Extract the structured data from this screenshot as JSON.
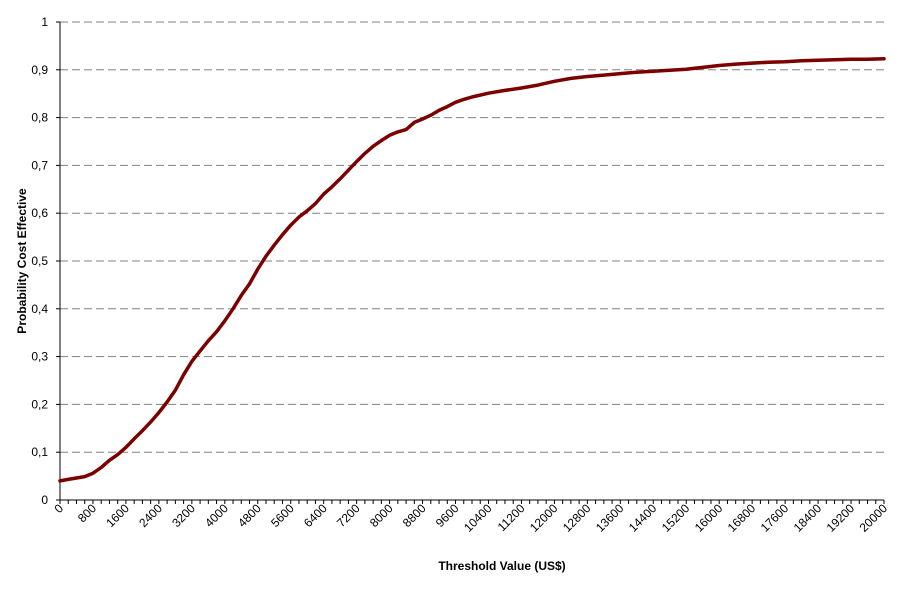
{
  "chart_data": {
    "type": "line",
    "title": "",
    "xlabel": "Threshold Value (US$)",
    "ylabel": "Probability Cost Effective",
    "xlim": [
      0,
      20000
    ],
    "ylim": [
      0,
      1
    ],
    "grid": "horizontal-dashed",
    "legend": "none",
    "line_color": "#7b0000",
    "x_tick_labels": [
      "0",
      "800",
      "1600",
      "2400",
      "3200",
      "4000",
      "4800",
      "5600",
      "6400",
      "7200",
      "8000",
      "8800",
      "9600",
      "10400",
      "11200",
      "12000",
      "12800",
      "13600",
      "14400",
      "15200",
      "16000",
      "16800",
      "17600",
      "18400",
      "19200",
      "20000"
    ],
    "y_tick_labels": [
      "0",
      "0,1",
      "0,2",
      "0,3",
      "0,4",
      "0,5",
      "0,6",
      "0,7",
      "0,8",
      "0,9",
      "1"
    ],
    "series": [
      {
        "x": [
          0,
          200,
          400,
          600,
          800,
          1000,
          1200,
          1400,
          1600,
          1800,
          2000,
          2200,
          2400,
          2600,
          2800,
          3000,
          3200,
          3400,
          3600,
          3800,
          4000,
          4200,
          4400,
          4600,
          4800,
          5000,
          5200,
          5400,
          5600,
          5800,
          6000,
          6200,
          6400,
          6600,
          6800,
          7000,
          7200,
          7400,
          7600,
          7800,
          8000,
          8200,
          8400,
          8600,
          8800,
          9000,
          9200,
          9400,
          9600,
          9800,
          10000,
          10400,
          10800,
          11200,
          11600,
          12000,
          12400,
          12800,
          13200,
          13600,
          14000,
          14400,
          14800,
          15200,
          15600,
          16000,
          16400,
          16800,
          17200,
          17600,
          18000,
          18400,
          18800,
          19200,
          19600,
          20000
        ],
        "y": [
          0.04,
          0.043,
          0.046,
          0.049,
          0.056,
          0.068,
          0.083,
          0.095,
          0.11,
          0.128,
          0.145,
          0.163,
          0.183,
          0.205,
          0.23,
          0.262,
          0.29,
          0.312,
          0.333,
          0.352,
          0.375,
          0.4,
          0.428,
          0.452,
          0.483,
          0.51,
          0.533,
          0.555,
          0.575,
          0.592,
          0.605,
          0.62,
          0.64,
          0.655,
          0.672,
          0.69,
          0.708,
          0.725,
          0.74,
          0.752,
          0.763,
          0.77,
          0.775,
          0.79,
          0.797,
          0.805,
          0.815,
          0.823,
          0.832,
          0.838,
          0.843,
          0.851,
          0.857,
          0.862,
          0.868,
          0.876,
          0.882,
          0.886,
          0.889,
          0.892,
          0.895,
          0.897,
          0.899,
          0.901,
          0.905,
          0.909,
          0.912,
          0.914,
          0.916,
          0.917,
          0.919,
          0.92,
          0.921,
          0.922,
          0.922,
          0.923
        ]
      }
    ]
  }
}
